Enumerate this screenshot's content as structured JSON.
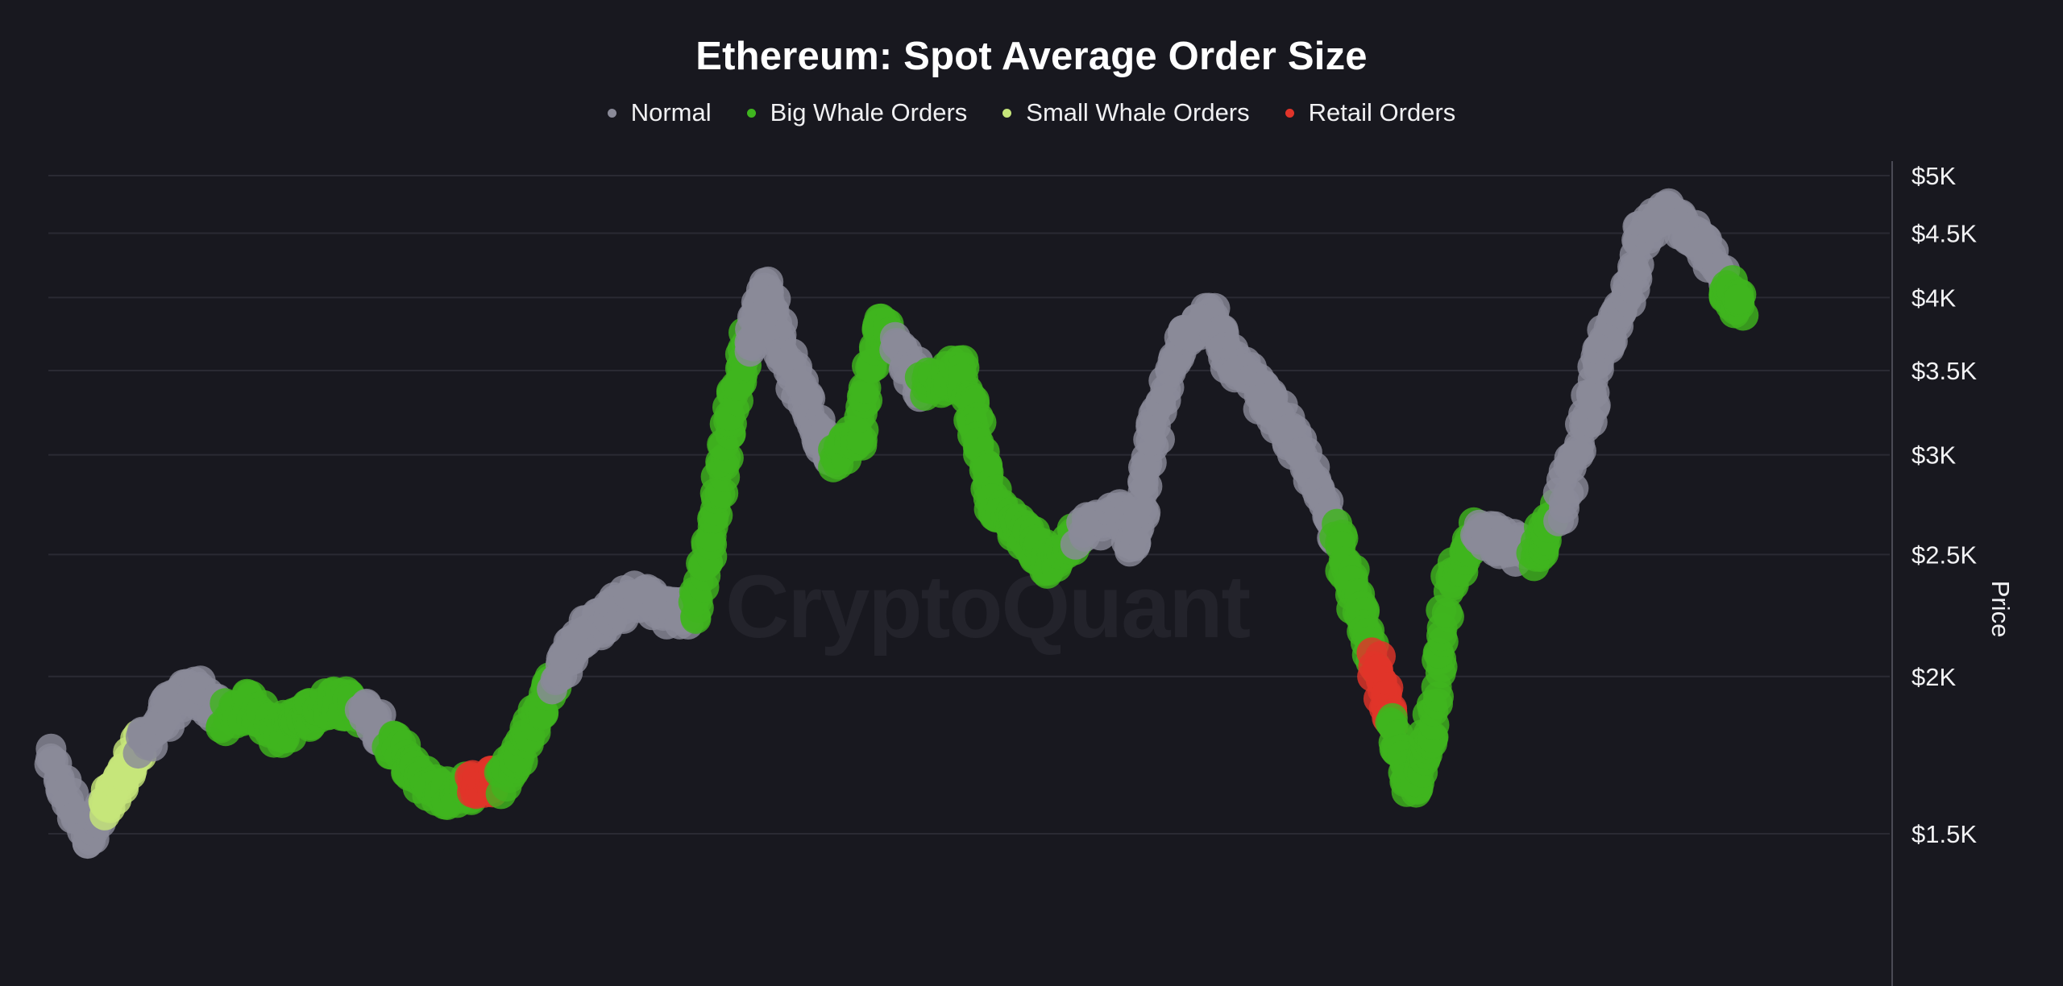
{
  "chart_data": {
    "type": "scatter",
    "title": "Ethereum: Spot Average Order Size",
    "watermark": "CryptoQuant",
    "ylabel": "Price",
    "y_scale": "log",
    "ylim": [
      1200,
      5000
    ],
    "y_ticks": [
      {
        "value": 5000,
        "label": "$5K"
      },
      {
        "value": 4500,
        "label": "$4.5K"
      },
      {
        "value": 4000,
        "label": "$4K"
      },
      {
        "value": 3500,
        "label": "$3.5K"
      },
      {
        "value": 3000,
        "label": "$3K"
      },
      {
        "value": 2500,
        "label": "$2.5K"
      },
      {
        "value": 2000,
        "label": "$2K"
      },
      {
        "value": 1500,
        "label": "$1.5K"
      }
    ],
    "grid": "horizontal",
    "legend_position": "top-center",
    "x_domain": [
      0,
      100
    ],
    "series": [
      {
        "name": "Normal",
        "color": "#8a8a98"
      },
      {
        "name": "Big Whale Orders",
        "color": "#3fb51f"
      },
      {
        "name": "Small Whale Orders",
        "color": "#c6e57a"
      },
      {
        "name": "Retail Orders",
        "color": "#e0342a"
      }
    ],
    "price_path": [
      [
        0.0,
        1720,
        0
      ],
      [
        2.0,
        1500,
        0
      ],
      [
        3.0,
        1560,
        2
      ],
      [
        4.0,
        1660,
        2
      ],
      [
        5.0,
        1760,
        0
      ],
      [
        6.5,
        1880,
        0
      ],
      [
        8.0,
        1960,
        0
      ],
      [
        9.5,
        1850,
        1
      ],
      [
        11.0,
        1900,
        1
      ],
      [
        12.5,
        1810,
        1
      ],
      [
        14.0,
        1860,
        1
      ],
      [
        15.5,
        1920,
        1
      ],
      [
        17.0,
        1880,
        0
      ],
      [
        18.5,
        1780,
        1
      ],
      [
        20.0,
        1660,
        1
      ],
      [
        21.5,
        1610,
        1
      ],
      [
        23.0,
        1640,
        3
      ],
      [
        24.5,
        1650,
        1
      ],
      [
        26.0,
        1790,
        1
      ],
      [
        27.5,
        2000,
        0
      ],
      [
        29.0,
        2160,
        0
      ],
      [
        30.5,
        2240,
        0
      ],
      [
        32.0,
        2320,
        0
      ],
      [
        33.5,
        2260,
        0
      ],
      [
        35.0,
        2240,
        1
      ],
      [
        36.0,
        2600,
        1
      ],
      [
        37.0,
        3200,
        1
      ],
      [
        38.0,
        3700,
        0
      ],
      [
        39.0,
        4100,
        0
      ],
      [
        40.0,
        3600,
        0
      ],
      [
        41.5,
        3200,
        0
      ],
      [
        42.5,
        3000,
        1
      ],
      [
        44.0,
        3100,
        1
      ],
      [
        45.0,
        3800,
        1
      ],
      [
        46.0,
        3700,
        0
      ],
      [
        47.5,
        3400,
        1
      ],
      [
        49.5,
        3500,
        1
      ],
      [
        50.5,
        3100,
        1
      ],
      [
        51.5,
        2700,
        1
      ],
      [
        53.0,
        2600,
        1
      ],
      [
        54.5,
        2450,
        1
      ],
      [
        56.0,
        2600,
        0
      ],
      [
        58.0,
        2700,
        0
      ],
      [
        59.0,
        2550,
        0
      ],
      [
        60.0,
        3100,
        0
      ],
      [
        61.5,
        3700,
        0
      ],
      [
        63.0,
        3900,
        0
      ],
      [
        64.0,
        3600,
        0
      ],
      [
        65.5,
        3400,
        0
      ],
      [
        67.0,
        3200,
        0
      ],
      [
        68.5,
        2900,
        0
      ],
      [
        70.0,
        2600,
        1
      ],
      [
        71.0,
        2300,
        1
      ],
      [
        72.0,
        2060,
        3
      ],
      [
        73.0,
        1820,
        1
      ],
      [
        74.0,
        1620,
        1
      ],
      [
        75.0,
        1800,
        1
      ],
      [
        76.0,
        2350,
        1
      ],
      [
        77.5,
        2600,
        0
      ],
      [
        79.0,
        2550,
        0
      ],
      [
        80.5,
        2500,
        1
      ],
      [
        82.0,
        2700,
        0
      ],
      [
        83.5,
        3200,
        0
      ],
      [
        84.5,
        3700,
        0
      ],
      [
        85.5,
        3900,
        0
      ],
      [
        86.5,
        4500,
        0
      ],
      [
        88.0,
        4650,
        0
      ],
      [
        89.5,
        4500,
        0
      ],
      [
        91.0,
        4100,
        1
      ],
      [
        92.0,
        3900,
        1
      ]
    ]
  }
}
